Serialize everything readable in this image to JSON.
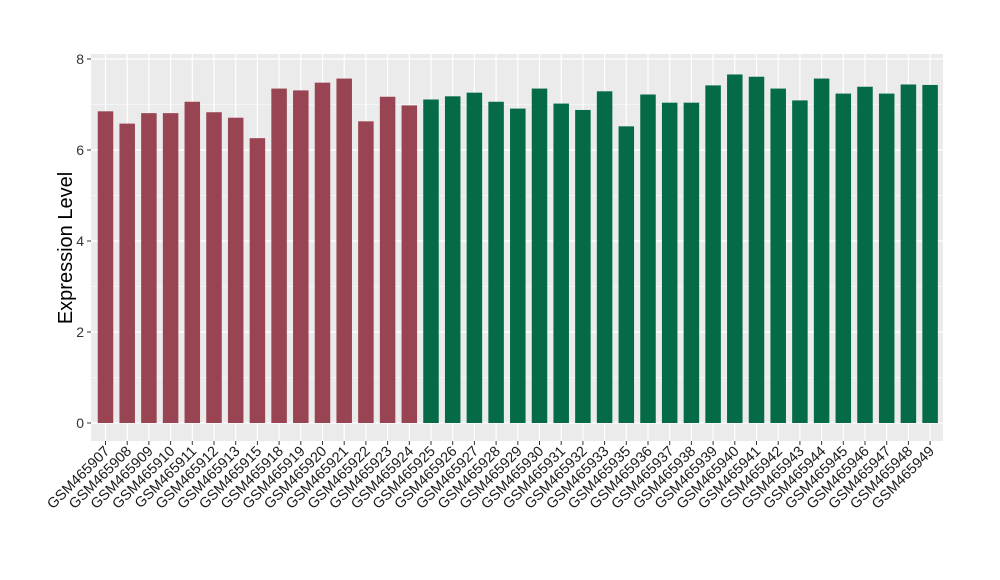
{
  "chart_data": {
    "type": "bar",
    "xlabel": "",
    "ylabel": "Expression Level",
    "ylim": [
      0,
      8
    ],
    "yticks": [
      0,
      2,
      4,
      6,
      8
    ],
    "grid": true,
    "legend": "none",
    "categories": [
      "GSM465907",
      "GSM465908",
      "GSM465909",
      "GSM465910",
      "GSM465911",
      "GSM465912",
      "GSM465913",
      "GSM465915",
      "GSM465918",
      "GSM465919",
      "GSM465920",
      "GSM465921",
      "GSM465922",
      "GSM465923",
      "GSM465924",
      "GSM465925",
      "GSM465926",
      "GSM465927",
      "GSM465928",
      "GSM465929",
      "GSM465930",
      "GSM465931",
      "GSM465932",
      "GSM465933",
      "GSM465935",
      "GSM465936",
      "GSM465937",
      "GSM465938",
      "GSM465939",
      "GSM465940",
      "GSM465941",
      "GSM465942",
      "GSM465943",
      "GSM465944",
      "GSM465945",
      "GSM465946",
      "GSM465947",
      "GSM465948",
      "GSM465949"
    ],
    "values": [
      6.85,
      6.58,
      6.81,
      6.81,
      7.06,
      6.83,
      6.71,
      6.26,
      7.35,
      7.31,
      7.48,
      7.57,
      6.63,
      7.17,
      6.98,
      7.11,
      7.18,
      7.26,
      7.06,
      6.91,
      7.35,
      7.02,
      6.88,
      7.29,
      6.52,
      7.22,
      7.04,
      7.04,
      7.42,
      7.66,
      7.61,
      7.35,
      7.09,
      7.57,
      7.24,
      7.39,
      7.24,
      7.44,
      7.43
    ],
    "groups": [
      "g1",
      "g1",
      "g1",
      "g1",
      "g1",
      "g1",
      "g1",
      "g1",
      "g1",
      "g1",
      "g1",
      "g1",
      "g1",
      "g1",
      "g1",
      "g2",
      "g2",
      "g2",
      "g2",
      "g2",
      "g2",
      "g2",
      "g2",
      "g2",
      "g2",
      "g2",
      "g2",
      "g2",
      "g2",
      "g2",
      "g2",
      "g2",
      "g2",
      "g2",
      "g2",
      "g2",
      "g2",
      "g2",
      "g2"
    ],
    "group_colors": {
      "g1": "#984452",
      "g2": "#056A46"
    },
    "panel_background": "#EBEBEB",
    "gridline_color": "#FFFFFF"
  }
}
